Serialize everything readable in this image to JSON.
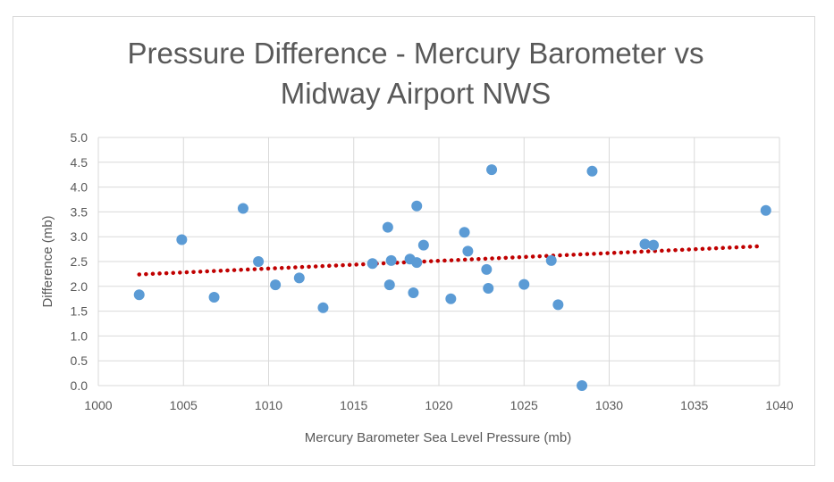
{
  "chart_data": {
    "type": "scatter",
    "title_lines": [
      "Pressure Difference - Mercury Barometer vs",
      "Midway Airport NWS"
    ],
    "xlabel": "Mercury Barometer Sea Level Pressure (mb)",
    "ylabel": "Difference (mb)",
    "xlim": [
      1000,
      1040
    ],
    "ylim": [
      0,
      5
    ],
    "xticks": [
      "1000",
      "1005",
      "1010",
      "1015",
      "1020",
      "1025",
      "1030",
      "1035",
      "1040"
    ],
    "yticks": [
      "0.0",
      "0.5",
      "1.0",
      "1.5",
      "2.0",
      "2.5",
      "3.0",
      "3.5",
      "4.0",
      "4.5",
      "5.0"
    ],
    "grid": true,
    "legend": "none",
    "point_color": "#5b9bd5",
    "trendline_color": "#c00000",
    "trendline": {
      "type": "linear",
      "x": [
        1002.4,
        1039.0
      ],
      "y": [
        2.24,
        2.81
      ]
    },
    "points": [
      {
        "x": 1002.4,
        "y": 1.83
      },
      {
        "x": 1004.9,
        "y": 2.94
      },
      {
        "x": 1006.8,
        "y": 1.78
      },
      {
        "x": 1008.5,
        "y": 3.57
      },
      {
        "x": 1009.4,
        "y": 2.5
      },
      {
        "x": 1010.4,
        "y": 2.03
      },
      {
        "x": 1011.8,
        "y": 2.17
      },
      {
        "x": 1013.2,
        "y": 1.57
      },
      {
        "x": 1016.1,
        "y": 2.46
      },
      {
        "x": 1017.0,
        "y": 3.19
      },
      {
        "x": 1017.1,
        "y": 2.03
      },
      {
        "x": 1017.2,
        "y": 2.52
      },
      {
        "x": 1018.3,
        "y": 2.55
      },
      {
        "x": 1018.5,
        "y": 1.87
      },
      {
        "x": 1018.7,
        "y": 2.48
      },
      {
        "x": 1018.7,
        "y": 3.62
      },
      {
        "x": 1019.1,
        "y": 2.83
      },
      {
        "x": 1020.7,
        "y": 1.75
      },
      {
        "x": 1021.5,
        "y": 3.09
      },
      {
        "x": 1021.7,
        "y": 2.71
      },
      {
        "x": 1022.8,
        "y": 2.34
      },
      {
        "x": 1022.9,
        "y": 1.96
      },
      {
        "x": 1023.1,
        "y": 4.35
      },
      {
        "x": 1025.0,
        "y": 2.04
      },
      {
        "x": 1026.6,
        "y": 2.52
      },
      {
        "x": 1027.0,
        "y": 1.63
      },
      {
        "x": 1028.4,
        "y": 0.0
      },
      {
        "x": 1029.0,
        "y": 4.32
      },
      {
        "x": 1032.1,
        "y": 2.85
      },
      {
        "x": 1032.6,
        "y": 2.83
      },
      {
        "x": 1039.2,
        "y": 3.53
      }
    ]
  }
}
